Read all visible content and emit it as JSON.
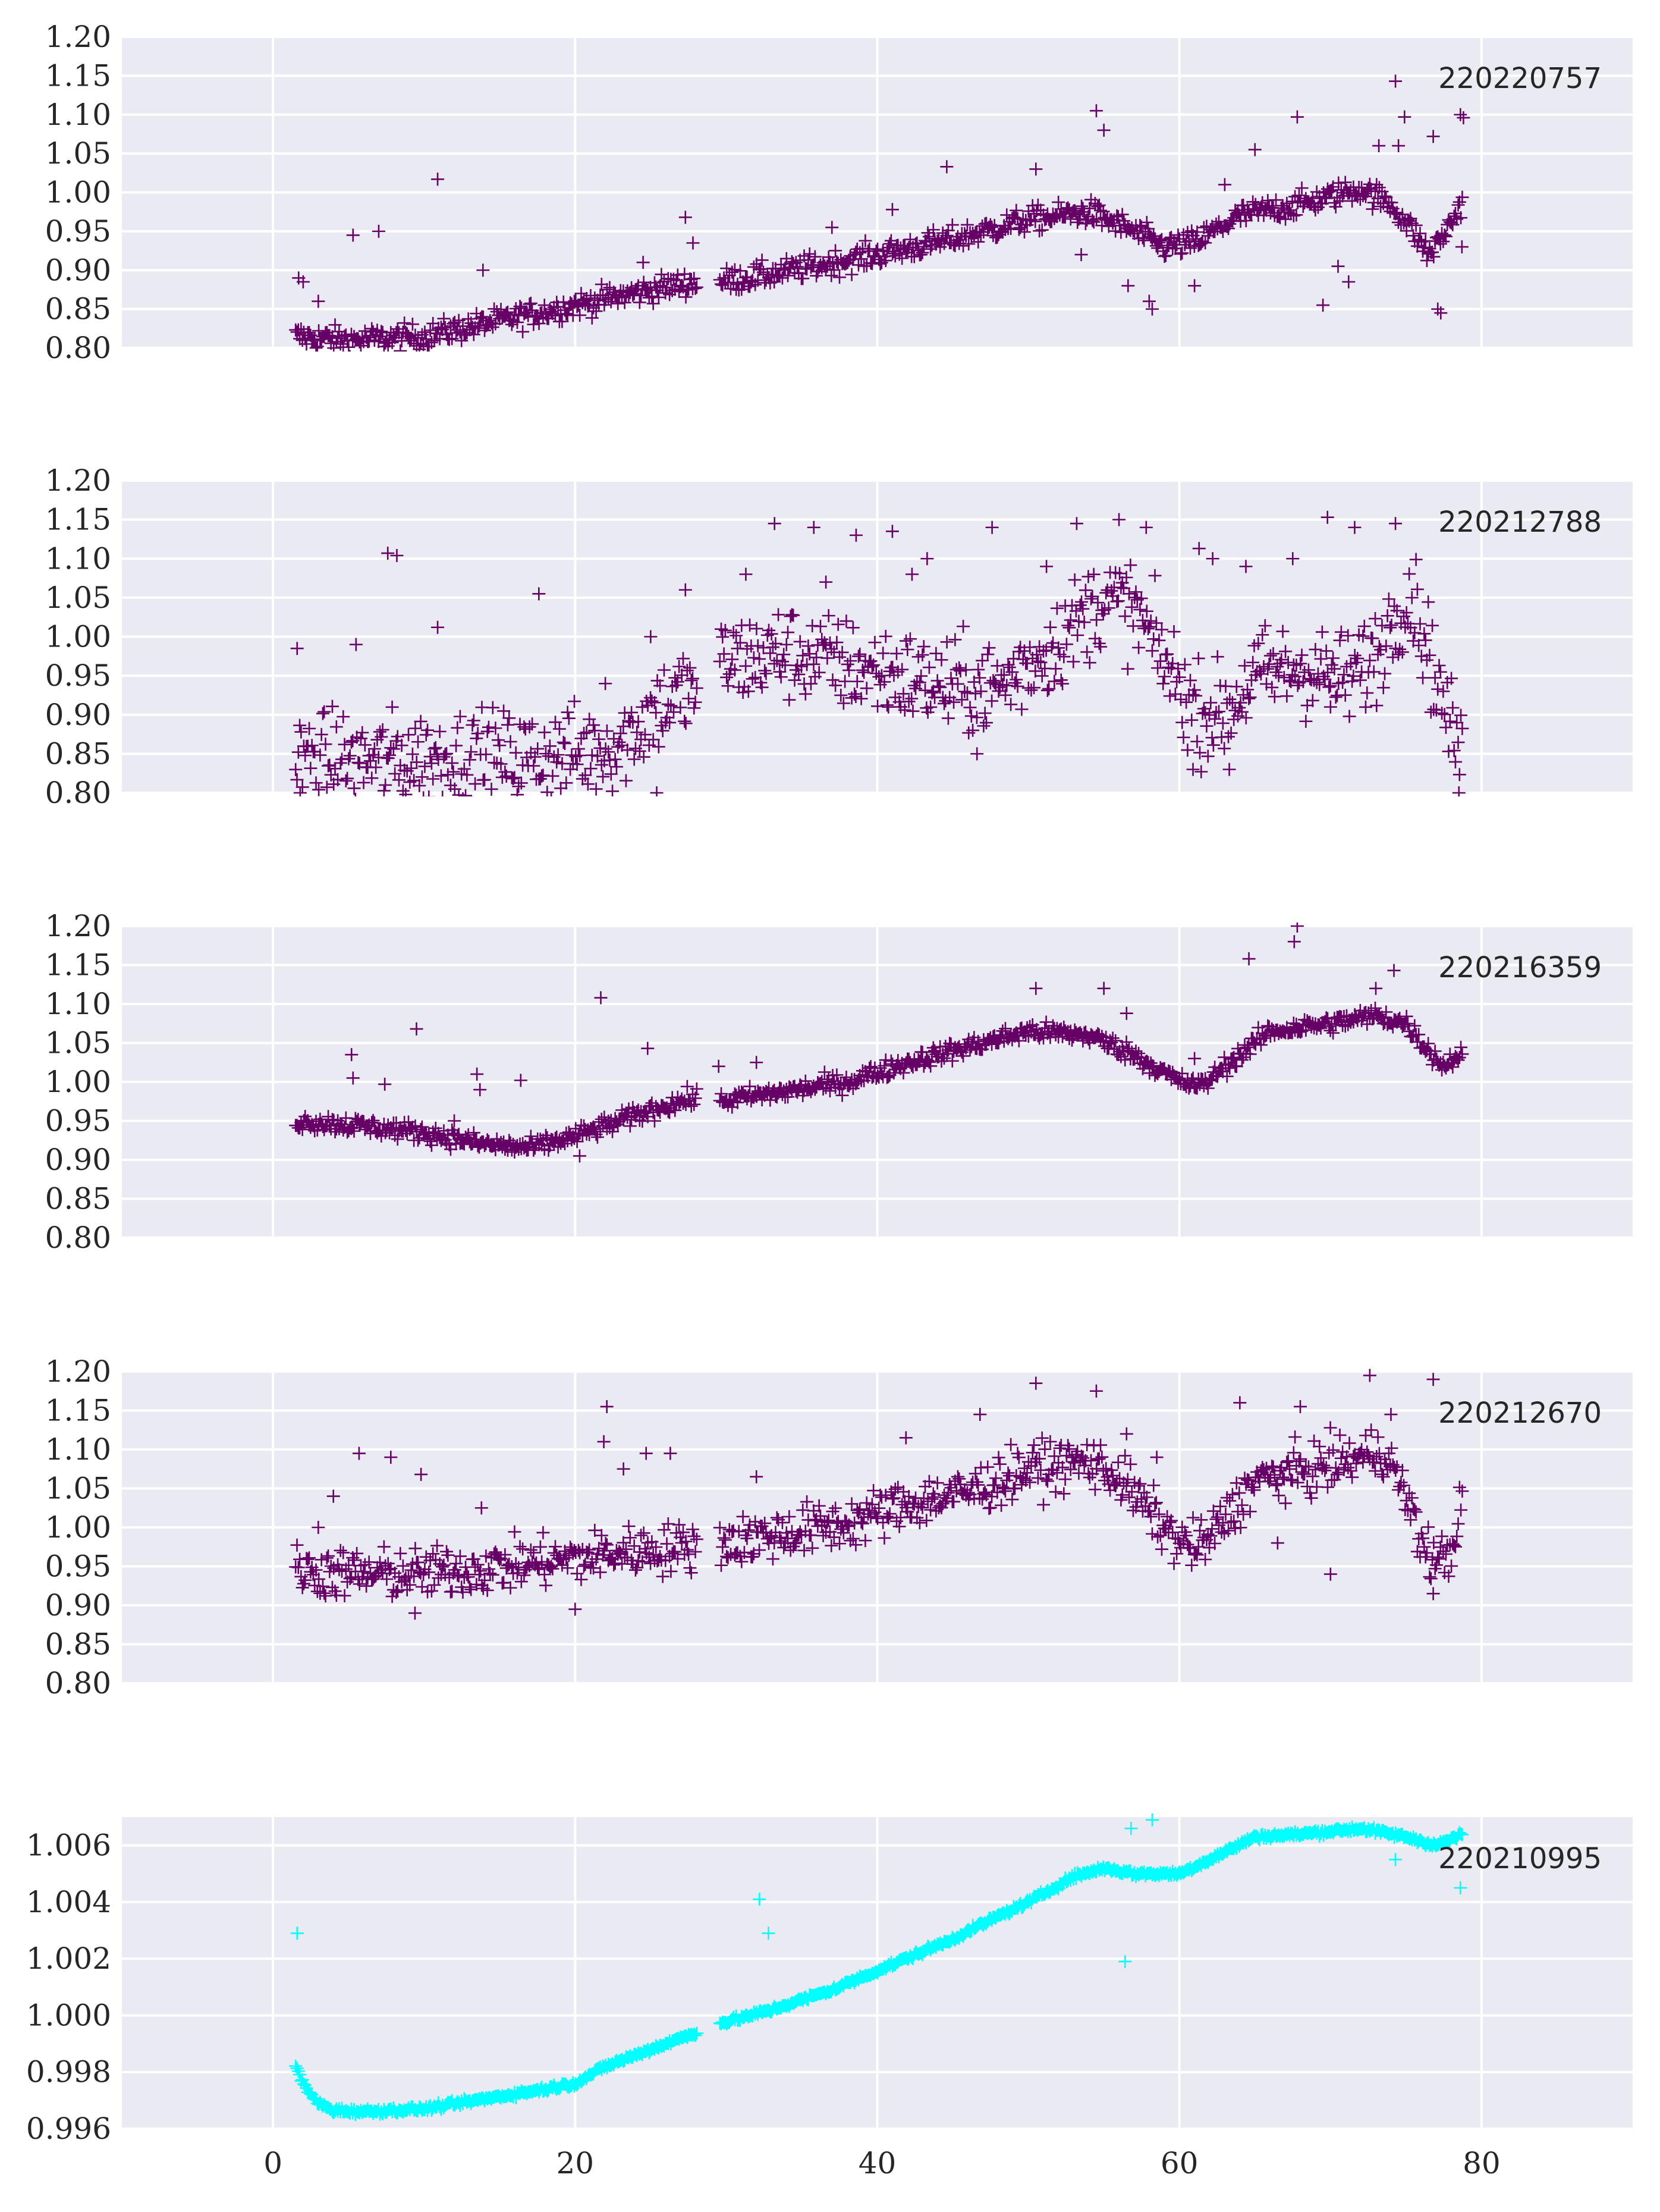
{
  "colors": {
    "purple": "#660066",
    "cyan": "#00ffff",
    "background": "#eaeaf2",
    "grid": "#ffffff"
  },
  "chart_data": [
    {
      "type": "scatter",
      "marker": "+",
      "color": "#660066",
      "label": "220220757",
      "ylim": [
        0.8,
        1.2
      ],
      "y_ticks": [
        "0.80",
        "0.85",
        "0.90",
        "0.95",
        "1.00",
        "1.05",
        "1.10",
        "1.15",
        "1.20"
      ],
      "xlim": [
        -10,
        90
      ],
      "x_ticks": [
        0,
        20,
        40,
        60,
        80
      ],
      "show_x_tick_labels": false,
      "grid": true,
      "trend": [
        [
          1.5,
          0.815
        ],
        [
          5,
          0.81
        ],
        [
          10,
          0.815
        ],
        [
          15,
          0.835
        ],
        [
          20,
          0.855
        ],
        [
          25,
          0.875
        ],
        [
          28,
          0.885
        ],
        [
          29.5,
          0.885
        ],
        [
          33,
          0.895
        ],
        [
          40,
          0.92
        ],
        [
          45,
          0.94
        ],
        [
          50,
          0.965
        ],
        [
          54,
          0.975
        ],
        [
          57,
          0.95
        ],
        [
          59,
          0.93
        ],
        [
          61,
          0.935
        ],
        [
          64,
          0.97
        ],
        [
          68,
          0.985
        ],
        [
          72,
          1.005
        ],
        [
          74,
          0.985
        ],
        [
          75.5,
          0.95
        ],
        [
          76.5,
          0.92
        ],
        [
          77.5,
          0.945
        ],
        [
          78.8,
          0.99
        ]
      ],
      "noise": 0.008,
      "outliers": [
        [
          1.7,
          0.89
        ],
        [
          2,
          0.885
        ],
        [
          3,
          0.86
        ],
        [
          5.3,
          0.945
        ],
        [
          7,
          0.95
        ],
        [
          10.9,
          1.017
        ],
        [
          13.9,
          0.9
        ],
        [
          24.5,
          0.91
        ],
        [
          27.3,
          0.968
        ],
        [
          27.8,
          0.935
        ],
        [
          37,
          0.955
        ],
        [
          41,
          0.978
        ],
        [
          44.6,
          1.033
        ],
        [
          50.5,
          1.03
        ],
        [
          54.5,
          1.105
        ],
        [
          55,
          1.08
        ],
        [
          53.5,
          0.92
        ],
        [
          56.6,
          0.88
        ],
        [
          58,
          0.86
        ],
        [
          58.2,
          0.85
        ],
        [
          61,
          0.88
        ],
        [
          63,
          1.01
        ],
        [
          65,
          1.055
        ],
        [
          67.8,
          1.097
        ],
        [
          69.5,
          0.855
        ],
        [
          70.5,
          0.905
        ],
        [
          71.2,
          0.885
        ],
        [
          73.2,
          1.06
        ],
        [
          74.3,
          1.143
        ],
        [
          74.9,
          1.097
        ],
        [
          74.5,
          1.06
        ],
        [
          76.8,
          1.072
        ],
        [
          77.1,
          0.85
        ],
        [
          77.3,
          0.845
        ],
        [
          78.6,
          1.1
        ],
        [
          78.8,
          1.096
        ],
        [
          78.7,
          0.93
        ]
      ]
    },
    {
      "type": "scatter",
      "marker": "+",
      "color": "#660066",
      "label": "220212788",
      "ylim": [
        0.8,
        1.2
      ],
      "y_ticks": [
        "0.80",
        "0.85",
        "0.90",
        "0.95",
        "1.00",
        "1.05",
        "1.10",
        "1.15",
        "1.20"
      ],
      "xlim": [
        -10,
        90
      ],
      "x_ticks": [
        0,
        20,
        40,
        60,
        80
      ],
      "show_x_tick_labels": false,
      "grid": true,
      "trend": [
        [
          1.5,
          0.845
        ],
        [
          5,
          0.84
        ],
        [
          10,
          0.845
        ],
        [
          15,
          0.845
        ],
        [
          20,
          0.85
        ],
        [
          23,
          0.865
        ],
        [
          25.5,
          0.91
        ],
        [
          28,
          0.935
        ],
        [
          29.5,
          0.965
        ],
        [
          34,
          0.98
        ],
        [
          40,
          0.955
        ],
        [
          45,
          0.935
        ],
        [
          48,
          0.935
        ],
        [
          52,
          0.995
        ],
        [
          55,
          1.05
        ],
        [
          57,
          1.035
        ],
        [
          59,
          0.97
        ],
        [
          61,
          0.905
        ],
        [
          63,
          0.9
        ],
        [
          65,
          0.95
        ],
        [
          68,
          0.96
        ],
        [
          71,
          0.945
        ],
        [
          73,
          0.975
        ],
        [
          74.5,
          1.04
        ],
        [
          75.5,
          1.05
        ],
        [
          76.5,
          0.98
        ],
        [
          77.5,
          0.91
        ],
        [
          78.8,
          0.84
        ]
      ],
      "noise": 0.03,
      "outliers": [
        [
          1.6,
          0.985
        ],
        [
          1.8,
          0.8
        ],
        [
          5.5,
          0.99
        ],
        [
          7.6,
          1.107
        ],
        [
          8.2,
          1.104
        ],
        [
          10.9,
          1.012
        ],
        [
          17.6,
          1.055
        ],
        [
          22,
          0.94
        ],
        [
          25,
          1.0
        ],
        [
          25.4,
          0.8
        ],
        [
          27.3,
          1.06
        ],
        [
          31.3,
          1.08
        ],
        [
          33.2,
          1.145
        ],
        [
          35.8,
          1.14
        ],
        [
          36.6,
          1.07
        ],
        [
          38.6,
          1.13
        ],
        [
          41,
          1.135
        ],
        [
          42.3,
          1.08
        ],
        [
          43.3,
          1.1
        ],
        [
          46.6,
          0.85
        ],
        [
          47.6,
          1.14
        ],
        [
          51.2,
          1.09
        ],
        [
          53.2,
          1.145
        ],
        [
          56,
          1.15
        ],
        [
          57.8,
          1.14
        ],
        [
          60.9,
          0.83
        ],
        [
          61.3,
          1.113
        ],
        [
          62.2,
          1.1
        ],
        [
          63.3,
          0.83
        ],
        [
          64.4,
          1.09
        ],
        [
          67.5,
          1.1
        ],
        [
          69.8,
          1.153
        ],
        [
          71.6,
          1.14
        ],
        [
          70,
          0.91
        ],
        [
          74.3,
          1.145
        ],
        [
          78.5,
          0.8
        ]
      ]
    },
    {
      "type": "scatter",
      "marker": "+",
      "color": "#660066",
      "label": "220216359",
      "ylim": [
        0.8,
        1.2
      ],
      "y_ticks": [
        "0.80",
        "0.85",
        "0.90",
        "0.95",
        "1.00",
        "1.05",
        "1.10",
        "1.15",
        "1.20"
      ],
      "xlim": [
        -10,
        90
      ],
      "x_ticks": [
        0,
        20,
        40,
        60,
        80
      ],
      "show_x_tick_labels": false,
      "grid": true,
      "trend": [
        [
          1.5,
          0.95
        ],
        [
          5,
          0.945
        ],
        [
          10,
          0.935
        ],
        [
          14,
          0.92
        ],
        [
          17,
          0.915
        ],
        [
          20,
          0.93
        ],
        [
          23,
          0.95
        ],
        [
          26,
          0.97
        ],
        [
          28,
          0.98
        ],
        [
          29.5,
          0.975
        ],
        [
          33,
          0.985
        ],
        [
          38,
          1.0
        ],
        [
          42,
          1.025
        ],
        [
          46,
          1.045
        ],
        [
          50,
          1.065
        ],
        [
          54,
          1.06
        ],
        [
          57,
          1.035
        ],
        [
          60,
          1.0
        ],
        [
          61.5,
          0.995
        ],
        [
          63,
          1.02
        ],
        [
          66,
          1.065
        ],
        [
          70,
          1.075
        ],
        [
          73,
          1.085
        ],
        [
          75,
          1.075
        ],
        [
          76.5,
          1.04
        ],
        [
          77.5,
          1.02
        ],
        [
          78.8,
          1.04
        ]
      ],
      "noise": 0.006,
      "outliers": [
        [
          5.2,
          1.035
        ],
        [
          5.3,
          1.005
        ],
        [
          7.4,
          0.997
        ],
        [
          9.5,
          1.068
        ],
        [
          12,
          0.95
        ],
        [
          13.5,
          1.01
        ],
        [
          13.7,
          0.99
        ],
        [
          16.4,
          1.002
        ],
        [
          20.3,
          0.905
        ],
        [
          21.7,
          1.108
        ],
        [
          24.8,
          1.043
        ],
        [
          29.5,
          1.02
        ],
        [
          32,
          1.025
        ],
        [
          50.5,
          1.12
        ],
        [
          55,
          1.12
        ],
        [
          56.5,
          1.088
        ],
        [
          61,
          1.03
        ],
        [
          64.6,
          1.158
        ],
        [
          67.6,
          1.18
        ],
        [
          67.8,
          1.2
        ],
        [
          74.2,
          1.143
        ],
        [
          73,
          1.12
        ]
      ]
    },
    {
      "type": "scatter",
      "marker": "+",
      "color": "#660066",
      "label": "220212670",
      "ylim": [
        0.8,
        1.2
      ],
      "y_ticks": [
        "0.80",
        "0.85",
        "0.90",
        "0.95",
        "1.00",
        "1.05",
        "1.10",
        "1.15",
        "1.20"
      ],
      "xlim": [
        -10,
        90
      ],
      "x_ticks": [
        0,
        20,
        40,
        60,
        80
      ],
      "show_x_tick_labels": false,
      "grid": true,
      "trend": [
        [
          1.5,
          0.945
        ],
        [
          5,
          0.94
        ],
        [
          10,
          0.94
        ],
        [
          15,
          0.95
        ],
        [
          20,
          0.96
        ],
        [
          24,
          0.97
        ],
        [
          28,
          0.975
        ],
        [
          29.5,
          0.98
        ],
        [
          33,
          0.99
        ],
        [
          38,
          1.005
        ],
        [
          42,
          1.03
        ],
        [
          46,
          1.045
        ],
        [
          50,
          1.075
        ],
        [
          54,
          1.085
        ],
        [
          56,
          1.065
        ],
        [
          58,
          1.02
        ],
        [
          60,
          0.98
        ],
        [
          61.5,
          0.975
        ],
        [
          63,
          1.01
        ],
        [
          65,
          1.06
        ],
        [
          69,
          1.075
        ],
        [
          72,
          1.09
        ],
        [
          73.5,
          1.1
        ],
        [
          75,
          1.04
        ],
        [
          76,
          0.98
        ],
        [
          77,
          0.955
        ],
        [
          78,
          0.97
        ],
        [
          78.8,
          1.04
        ]
      ],
      "noise": 0.016,
      "outliers": [
        [
          3,
          1.0
        ],
        [
          4,
          1.04
        ],
        [
          5.7,
          1.095
        ],
        [
          7.8,
          1.09
        ],
        [
          9.8,
          1.068
        ],
        [
          9.4,
          0.89
        ],
        [
          13.8,
          1.025
        ],
        [
          20,
          0.895
        ],
        [
          21.9,
          1.11
        ],
        [
          22.1,
          1.155
        ],
        [
          23.2,
          1.075
        ],
        [
          24.7,
          1.095
        ],
        [
          26.3,
          1.095
        ],
        [
          32,
          1.065
        ],
        [
          41.9,
          1.115
        ],
        [
          46.8,
          1.145
        ],
        [
          50.5,
          1.185
        ],
        [
          54.5,
          1.175
        ],
        [
          56.5,
          1.12
        ],
        [
          58.5,
          1.09
        ],
        [
          64,
          1.16
        ],
        [
          66.5,
          0.98
        ],
        [
          68,
          1.155
        ],
        [
          70,
          0.94
        ],
        [
          72.6,
          1.195
        ],
        [
          74,
          1.145
        ],
        [
          76.8,
          1.19
        ],
        [
          76.8,
          0.915
        ]
      ]
    },
    {
      "type": "scatter",
      "marker": "+",
      "color": "#00ffff",
      "label": "220210995",
      "ylim": [
        0.996,
        1.007
      ],
      "y_ticks": [
        "0.996",
        "0.998",
        "1.000",
        "1.002",
        "1.004",
        "1.006"
      ],
      "xlim": [
        -10,
        90
      ],
      "x_ticks": [
        0,
        20,
        40,
        60,
        80
      ],
      "x_tick_labels": [
        "0",
        "20",
        "40",
        "60",
        "80"
      ],
      "show_x_tick_labels": true,
      "grid": true,
      "trend": [
        [
          1.5,
          0.9982
        ],
        [
          2.2,
          0.9974
        ],
        [
          3,
          0.9969
        ],
        [
          4,
          0.99665
        ],
        [
          6,
          0.9966
        ],
        [
          8,
          0.99665
        ],
        [
          10,
          0.9967
        ],
        [
          14,
          0.99705
        ],
        [
          18,
          0.9974
        ],
        [
          20,
          0.9976
        ],
        [
          22,
          0.9982
        ],
        [
          25,
          0.9988
        ],
        [
          28,
          0.9994
        ],
        [
          29.5,
          0.9997
        ],
        [
          33,
          1.0002
        ],
        [
          37,
          1.0009
        ],
        [
          41,
          1.0018
        ],
        [
          45,
          1.0027
        ],
        [
          48,
          1.0035
        ],
        [
          50,
          1.004
        ],
        [
          53,
          1.0049
        ],
        [
          55,
          1.0052
        ],
        [
          57,
          1.005
        ],
        [
          60,
          1.005
        ],
        [
          62,
          1.0055
        ],
        [
          65,
          1.0063
        ],
        [
          68,
          1.0064
        ],
        [
          72,
          1.0066
        ],
        [
          75,
          1.0063
        ],
        [
          77,
          1.006
        ],
        [
          78.8,
          1.0064
        ]
      ],
      "noise": 5e-05,
      "outliers": [
        [
          1.6,
          1.0029
        ],
        [
          32.2,
          1.0041
        ],
        [
          32.8,
          1.0029
        ],
        [
          56.4,
          1.0019
        ],
        [
          56.8,
          1.0066
        ],
        [
          58.2,
          1.0069
        ],
        [
          74.3,
          1.0055
        ],
        [
          78.6,
          1.0045
        ]
      ]
    }
  ]
}
